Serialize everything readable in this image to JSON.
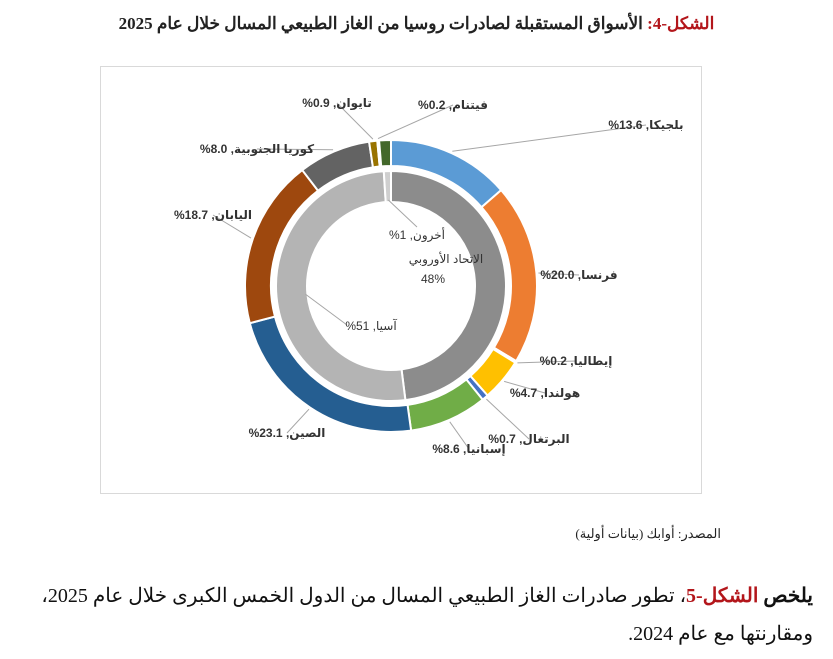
{
  "figure": {
    "label": "الشكل-4:",
    "title": "الأسواق المستقبلة لصادرات روسيا من الغاز الطبيعي المسال خلال عام 2025"
  },
  "chart_data": {
    "type": "pie",
    "outer_ring": [
      {
        "name": "بلجيكا",
        "value": 13.6,
        "label": "بلجيكا, 13.6%",
        "color": "#5b9bd5"
      },
      {
        "name": "فرنسا",
        "value": 20.0,
        "label": "فرنسا, 20.0%",
        "color": "#ed7d31"
      },
      {
        "name": "إيطاليا",
        "value": 0.2,
        "label": "إيطاليا, 0.2%",
        "color": "#a5a5a5"
      },
      {
        "name": "هولندا",
        "value": 4.7,
        "label": "هولندا, 4.7%",
        "color": "#ffc000"
      },
      {
        "name": "البرتغال",
        "value": 0.7,
        "label": "البرتغال, 0.7%",
        "color": "#4472c4"
      },
      {
        "name": "إسبانيا",
        "value": 8.6,
        "label": "إسبانيا, 8.6%",
        "color": "#70ad47"
      },
      {
        "name": "الصين",
        "value": 23.1,
        "label": "الصين, 23.1%",
        "color": "#255e91"
      },
      {
        "name": "اليابان",
        "value": 18.7,
        "label": "اليابان, 18.7%",
        "color": "#9e480e"
      },
      {
        "name": "كوريا الجنوبية",
        "value": 8.0,
        "label": "كوريا الجنوبية, 8.0%",
        "color": "#636363"
      },
      {
        "name": "تايوان",
        "value": 0.9,
        "label": "تايوان, 0.9%",
        "color": "#997300"
      },
      {
        "name": "فيتنام",
        "value": 0.2,
        "label": "فيتنام, 0.2%",
        "color": "#264478"
      },
      {
        "name": "other",
        "value": 1.3,
        "label": "",
        "color": "#43682b"
      }
    ],
    "inner_ring": [
      {
        "name": "الاتحاد الأوروبي",
        "value": 48,
        "label_line1": "الاتحاد الأوروبي",
        "label_line2": "48%",
        "color": "#8c8c8c"
      },
      {
        "name": "آسيا",
        "value": 51,
        "label": "آسيا, 51%",
        "color": "#b4b4b4"
      },
      {
        "name": "أخرون",
        "value": 1,
        "label": "أخرون, 1%",
        "color": "#cfcfcf"
      }
    ]
  },
  "source": "المصدر: أوابك (بيانات أولية)",
  "summary": {
    "lead": "يلخص",
    "fig_ref": "الشكل-5",
    "text": "، تطور صادرات الغاز الطبيعي المسال من الدول الخمس الكبرى خلال عام 2025، ومقارنتها مع عام 2024."
  }
}
